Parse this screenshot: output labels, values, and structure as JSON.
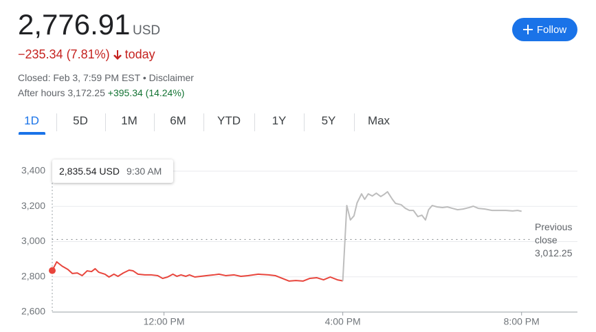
{
  "header": {
    "price": "2,776.91",
    "currency": "USD",
    "change": "−235.34 (7.81%)",
    "change_period": "today",
    "status": "Closed: Feb 3, 7:59 PM EST •",
    "disclaimer": "Disclaimer",
    "after_hours": "After hours 3,172.25",
    "after_hours_change": "+395.34 (14.24%)",
    "follow": "Follow"
  },
  "tabs": [
    "1D",
    "5D",
    "1M",
    "6M",
    "YTD",
    "1Y",
    "5Y",
    "Max"
  ],
  "tooltip": {
    "price": "2,835.54 USD",
    "time": "9:30 AM"
  },
  "chart_data": {
    "type": "line",
    "series": [
      {
        "color": "#e8453c",
        "x": [
          9.5,
          9.6,
          9.72,
          9.85,
          9.95,
          10.06,
          10.17,
          10.28,
          10.38,
          10.46,
          10.54,
          10.68,
          10.77,
          10.88,
          10.97,
          11.09,
          11.22,
          11.31,
          11.42,
          11.57,
          11.72,
          11.86,
          11.97,
          12.08,
          12.2,
          12.29,
          12.38,
          12.49,
          12.57,
          12.69,
          12.82,
          12.95,
          13.11,
          13.23,
          13.38,
          13.57,
          13.72,
          13.88,
          14.11,
          14.34,
          14.49,
          14.65,
          14.8,
          14.95,
          15.11,
          15.26,
          15.42,
          15.57,
          15.72,
          15.88,
          16
        ],
        "values": [
          2835.54,
          2885,
          2861,
          2842,
          2819,
          2822,
          2807,
          2834,
          2830,
          2846,
          2826,
          2815,
          2799,
          2815,
          2803,
          2822,
          2838,
          2834,
          2815,
          2811,
          2811,
          2807,
          2791,
          2799,
          2815,
          2803,
          2811,
          2803,
          2811,
          2799,
          2803,
          2807,
          2811,
          2815,
          2807,
          2811,
          2803,
          2807,
          2815,
          2811,
          2807,
          2791,
          2776,
          2779,
          2776,
          2791,
          2795,
          2783,
          2799,
          2783,
          2776.91
        ]
      },
      {
        "color": "#bdbdbd",
        "x": [
          16,
          16.09,
          16.17,
          16.25,
          16.32,
          16.42,
          16.49,
          16.57,
          16.66,
          16.75,
          16.85,
          16.92,
          17,
          17.11,
          17.18,
          17.31,
          17.4,
          17.49,
          17.58,
          17.68,
          17.77,
          17.85,
          17.92,
          18,
          18.11,
          18.23,
          18.34,
          18.45,
          18.57,
          18.69,
          18.82,
          18.92,
          19.03,
          19.18,
          19.34,
          19.49,
          19.65,
          19.8,
          19.91,
          20
        ],
        "values": [
          2776.91,
          3205,
          3123,
          3146,
          3220,
          3271,
          3240,
          3271,
          3259,
          3275,
          3256,
          3267,
          3283,
          3240,
          3217,
          3209,
          3189,
          3177,
          3177,
          3142,
          3150,
          3123,
          3181,
          3205,
          3197,
          3193,
          3197,
          3189,
          3181,
          3185,
          3193,
          3201,
          3189,
          3185,
          3177,
          3177,
          3177,
          3174,
          3177,
          3172.25
        ]
      }
    ],
    "reference_line": {
      "value": 3012.25,
      "label": "Previous close",
      "value_label": "3,012.25"
    },
    "xlim": [
      9.5,
      21.25
    ],
    "xticks": [
      {
        "value": 12,
        "label": "12:00 PM"
      },
      {
        "value": 16,
        "label": "4:00 PM"
      },
      {
        "value": 20,
        "label": "8:00 PM"
      }
    ],
    "ylim": [
      2600,
      3400
    ],
    "yticks": [
      {
        "value": 2600,
        "label": "2,600"
      },
      {
        "value": 2800,
        "label": "2,800"
      },
      {
        "value": 3000,
        "label": "3,000"
      },
      {
        "value": 3200,
        "label": "3,200"
      },
      {
        "value": 3400,
        "label": "3,400"
      }
    ],
    "grid": true
  }
}
